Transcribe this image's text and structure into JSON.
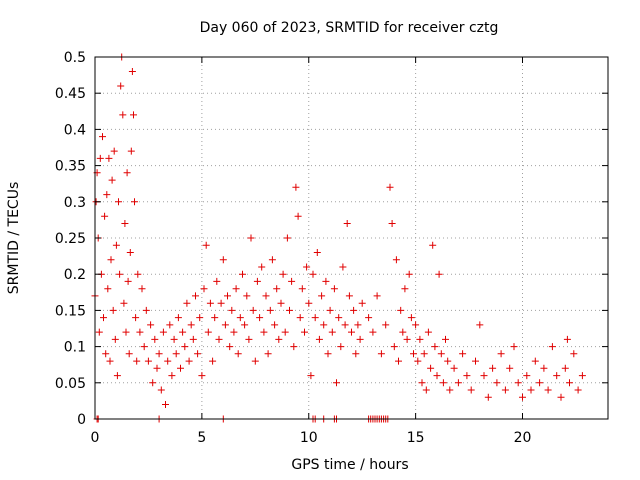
{
  "chart_data": {
    "type": "scatter",
    "title": "Day 060 of 2023, SRMTID for receiver cztg",
    "xlabel": "GPS time / hours",
    "ylabel": "SRMTID / TECUs",
    "xlim": [
      0,
      24
    ],
    "ylim": [
      0,
      0.5
    ],
    "xticks": [
      0,
      5,
      10,
      15,
      20
    ],
    "xtick_labels": [
      "0",
      "5",
      "10",
      "15",
      "20"
    ],
    "yticks": [
      0,
      0.05,
      0.1,
      0.15,
      0.2,
      0.25,
      0.3,
      0.35,
      0.4,
      0.45,
      0.5
    ],
    "ytick_labels": [
      "0",
      "0.05",
      "0.1",
      "0.15",
      "0.2",
      "0.25",
      "0.3",
      "0.35",
      "0.4",
      "0.45",
      "0.5"
    ],
    "grid": true,
    "marker": "plus",
    "color": "#e00000",
    "series": [
      {
        "name": "SRMTID",
        "points": [
          [
            0.0,
            0.17
          ],
          [
            0.05,
            0.3
          ],
          [
            0.1,
            0.34
          ],
          [
            0.15,
            0.25
          ],
          [
            0.2,
            0.12
          ],
          [
            0.25,
            0.36
          ],
          [
            0.3,
            0.2
          ],
          [
            0.35,
            0.39
          ],
          [
            0.4,
            0.14
          ],
          [
            0.45,
            0.28
          ],
          [
            0.5,
            0.09
          ],
          [
            0.55,
            0.31
          ],
          [
            0.6,
            0.18
          ],
          [
            0.65,
            0.36
          ],
          [
            0.7,
            0.08
          ],
          [
            0.75,
            0.22
          ],
          [
            0.8,
            0.33
          ],
          [
            0.85,
            0.15
          ],
          [
            0.9,
            0.37
          ],
          [
            0.95,
            0.11
          ],
          [
            1.0,
            0.24
          ],
          [
            1.05,
            0.06
          ],
          [
            1.1,
            0.3
          ],
          [
            1.15,
            0.2
          ],
          [
            1.2,
            0.46
          ],
          [
            1.25,
            0.5
          ],
          [
            1.3,
            0.42
          ],
          [
            1.35,
            0.16
          ],
          [
            1.4,
            0.27
          ],
          [
            1.45,
            0.12
          ],
          [
            1.5,
            0.34
          ],
          [
            1.55,
            0.19
          ],
          [
            1.6,
            0.09
          ],
          [
            1.65,
            0.23
          ],
          [
            1.7,
            0.37
          ],
          [
            1.75,
            0.48
          ],
          [
            1.8,
            0.42
          ],
          [
            1.85,
            0.3
          ],
          [
            1.9,
            0.14
          ],
          [
            1.95,
            0.08
          ],
          [
            2.0,
            0.2
          ],
          [
            2.1,
            0.12
          ],
          [
            2.2,
            0.18
          ],
          [
            2.3,
            0.1
          ],
          [
            2.4,
            0.15
          ],
          [
            2.5,
            0.08
          ],
          [
            2.6,
            0.13
          ],
          [
            2.7,
            0.05
          ],
          [
            2.8,
            0.11
          ],
          [
            2.9,
            0.07
          ],
          [
            3.0,
            0.09
          ],
          [
            3.1,
            0.04
          ],
          [
            3.2,
            0.12
          ],
          [
            3.3,
            0.02
          ],
          [
            3.4,
            0.08
          ],
          [
            3.5,
            0.13
          ],
          [
            3.6,
            0.06
          ],
          [
            3.7,
            0.11
          ],
          [
            3.8,
            0.09
          ],
          [
            3.9,
            0.14
          ],
          [
            4.0,
            0.07
          ],
          [
            4.1,
            0.12
          ],
          [
            4.2,
            0.1
          ],
          [
            4.3,
            0.16
          ],
          [
            4.4,
            0.08
          ],
          [
            4.5,
            0.13
          ],
          [
            4.6,
            0.11
          ],
          [
            4.7,
            0.17
          ],
          [
            4.8,
            0.09
          ],
          [
            4.9,
            0.14
          ],
          [
            5.0,
            0.06
          ],
          [
            5.1,
            0.18
          ],
          [
            5.2,
            0.24
          ],
          [
            5.3,
            0.12
          ],
          [
            5.4,
            0.16
          ],
          [
            5.5,
            0.08
          ],
          [
            5.6,
            0.14
          ],
          [
            5.7,
            0.19
          ],
          [
            5.8,
            0.11
          ],
          [
            5.9,
            0.16
          ],
          [
            6.0,
            0.22
          ],
          [
            6.1,
            0.13
          ],
          [
            6.2,
            0.17
          ],
          [
            6.3,
            0.1
          ],
          [
            6.4,
            0.15
          ],
          [
            6.5,
            0.12
          ],
          [
            6.6,
            0.18
          ],
          [
            6.7,
            0.09
          ],
          [
            6.8,
            0.14
          ],
          [
            6.9,
            0.2
          ],
          [
            7.0,
            0.13
          ],
          [
            7.1,
            0.17
          ],
          [
            7.2,
            0.11
          ],
          [
            7.3,
            0.25
          ],
          [
            7.4,
            0.15
          ],
          [
            7.5,
            0.08
          ],
          [
            7.6,
            0.19
          ],
          [
            7.7,
            0.14
          ],
          [
            7.8,
            0.21
          ],
          [
            7.9,
            0.12
          ],
          [
            8.0,
            0.17
          ],
          [
            8.1,
            0.09
          ],
          [
            8.2,
            0.15
          ],
          [
            8.3,
            0.22
          ],
          [
            8.4,
            0.13
          ],
          [
            8.5,
            0.18
          ],
          [
            8.6,
            0.11
          ],
          [
            8.7,
            0.16
          ],
          [
            8.8,
            0.2
          ],
          [
            8.9,
            0.12
          ],
          [
            9.0,
            0.25
          ],
          [
            9.1,
            0.15
          ],
          [
            9.2,
            0.19
          ],
          [
            9.3,
            0.1
          ],
          [
            9.4,
            0.32
          ],
          [
            9.5,
            0.28
          ],
          [
            9.6,
            0.14
          ],
          [
            9.7,
            0.18
          ],
          [
            9.8,
            0.12
          ],
          [
            9.9,
            0.21
          ],
          [
            10.0,
            0.16
          ],
          [
            10.1,
            0.06
          ],
          [
            10.2,
            0.2
          ],
          [
            10.3,
            0.14
          ],
          [
            10.4,
            0.23
          ],
          [
            10.5,
            0.11
          ],
          [
            10.6,
            0.17
          ],
          [
            10.7,
            0.13
          ],
          [
            10.8,
            0.19
          ],
          [
            10.9,
            0.09
          ],
          [
            11.0,
            0.15
          ],
          [
            11.1,
            0.12
          ],
          [
            11.2,
            0.18
          ],
          [
            11.3,
            0.05
          ],
          [
            11.4,
            0.14
          ],
          [
            11.5,
            0.1
          ],
          [
            11.6,
            0.21
          ],
          [
            11.7,
            0.13
          ],
          [
            11.8,
            0.27
          ],
          [
            11.9,
            0.17
          ],
          [
            12.0,
            0.12
          ],
          [
            12.1,
            0.15
          ],
          [
            12.2,
            0.09
          ],
          [
            12.3,
            0.13
          ],
          [
            12.4,
            0.11
          ],
          [
            12.5,
            0.16
          ],
          [
            12.8,
            0.14
          ],
          [
            13.0,
            0.12
          ],
          [
            13.2,
            0.17
          ],
          [
            13.4,
            0.09
          ],
          [
            13.6,
            0.13
          ],
          [
            13.8,
            0.32
          ],
          [
            13.9,
            0.27
          ],
          [
            14.0,
            0.1
          ],
          [
            14.1,
            0.22
          ],
          [
            14.2,
            0.08
          ],
          [
            14.3,
            0.15
          ],
          [
            14.4,
            0.12
          ],
          [
            14.5,
            0.18
          ],
          [
            14.6,
            0.11
          ],
          [
            14.7,
            0.2
          ],
          [
            14.8,
            0.14
          ],
          [
            14.9,
            0.09
          ],
          [
            15.0,
            0.13
          ],
          [
            15.1,
            0.08
          ],
          [
            15.2,
            0.11
          ],
          [
            15.3,
            0.05
          ],
          [
            15.4,
            0.09
          ],
          [
            15.5,
            0.04
          ],
          [
            15.6,
            0.12
          ],
          [
            15.7,
            0.07
          ],
          [
            15.8,
            0.24
          ],
          [
            15.9,
            0.1
          ],
          [
            16.0,
            0.06
          ],
          [
            16.1,
            0.2
          ],
          [
            16.2,
            0.09
          ],
          [
            16.3,
            0.05
          ],
          [
            16.4,
            0.11
          ],
          [
            16.5,
            0.08
          ],
          [
            16.6,
            0.04
          ],
          [
            16.8,
            0.07
          ],
          [
            17.0,
            0.05
          ],
          [
            17.2,
            0.09
          ],
          [
            17.4,
            0.06
          ],
          [
            17.6,
            0.04
          ],
          [
            17.8,
            0.08
          ],
          [
            18.0,
            0.13
          ],
          [
            18.2,
            0.06
          ],
          [
            18.4,
            0.03
          ],
          [
            18.6,
            0.07
          ],
          [
            18.8,
            0.05
          ],
          [
            19.0,
            0.09
          ],
          [
            19.2,
            0.04
          ],
          [
            19.4,
            0.07
          ],
          [
            19.6,
            0.1
          ],
          [
            19.8,
            0.05
          ],
          [
            20.0,
            0.03
          ],
          [
            20.2,
            0.06
          ],
          [
            20.4,
            0.04
          ],
          [
            20.6,
            0.08
          ],
          [
            20.8,
            0.05
          ],
          [
            21.0,
            0.07
          ],
          [
            21.2,
            0.04
          ],
          [
            21.4,
            0.1
          ],
          [
            21.6,
            0.06
          ],
          [
            21.8,
            0.03
          ],
          [
            22.0,
            0.07
          ],
          [
            22.1,
            0.11
          ],
          [
            22.2,
            0.05
          ],
          [
            22.4,
            0.09
          ],
          [
            22.6,
            0.04
          ],
          [
            22.8,
            0.06
          ],
          [
            0.1,
            0.0
          ],
          [
            0.15,
            0.0
          ],
          [
            3.0,
            0.0
          ],
          [
            6.0,
            0.0
          ],
          [
            10.2,
            0.0
          ],
          [
            10.3,
            0.0
          ],
          [
            10.7,
            0.0
          ],
          [
            11.2,
            0.0
          ],
          [
            11.3,
            0.0
          ],
          [
            12.8,
            0.0
          ],
          [
            12.9,
            0.0
          ],
          [
            13.0,
            0.0
          ],
          [
            13.1,
            0.0
          ],
          [
            13.2,
            0.0
          ],
          [
            13.3,
            0.0
          ],
          [
            13.4,
            0.0
          ],
          [
            13.5,
            0.0
          ],
          [
            13.6,
            0.0
          ],
          [
            13.7,
            0.0
          ]
        ]
      }
    ]
  }
}
